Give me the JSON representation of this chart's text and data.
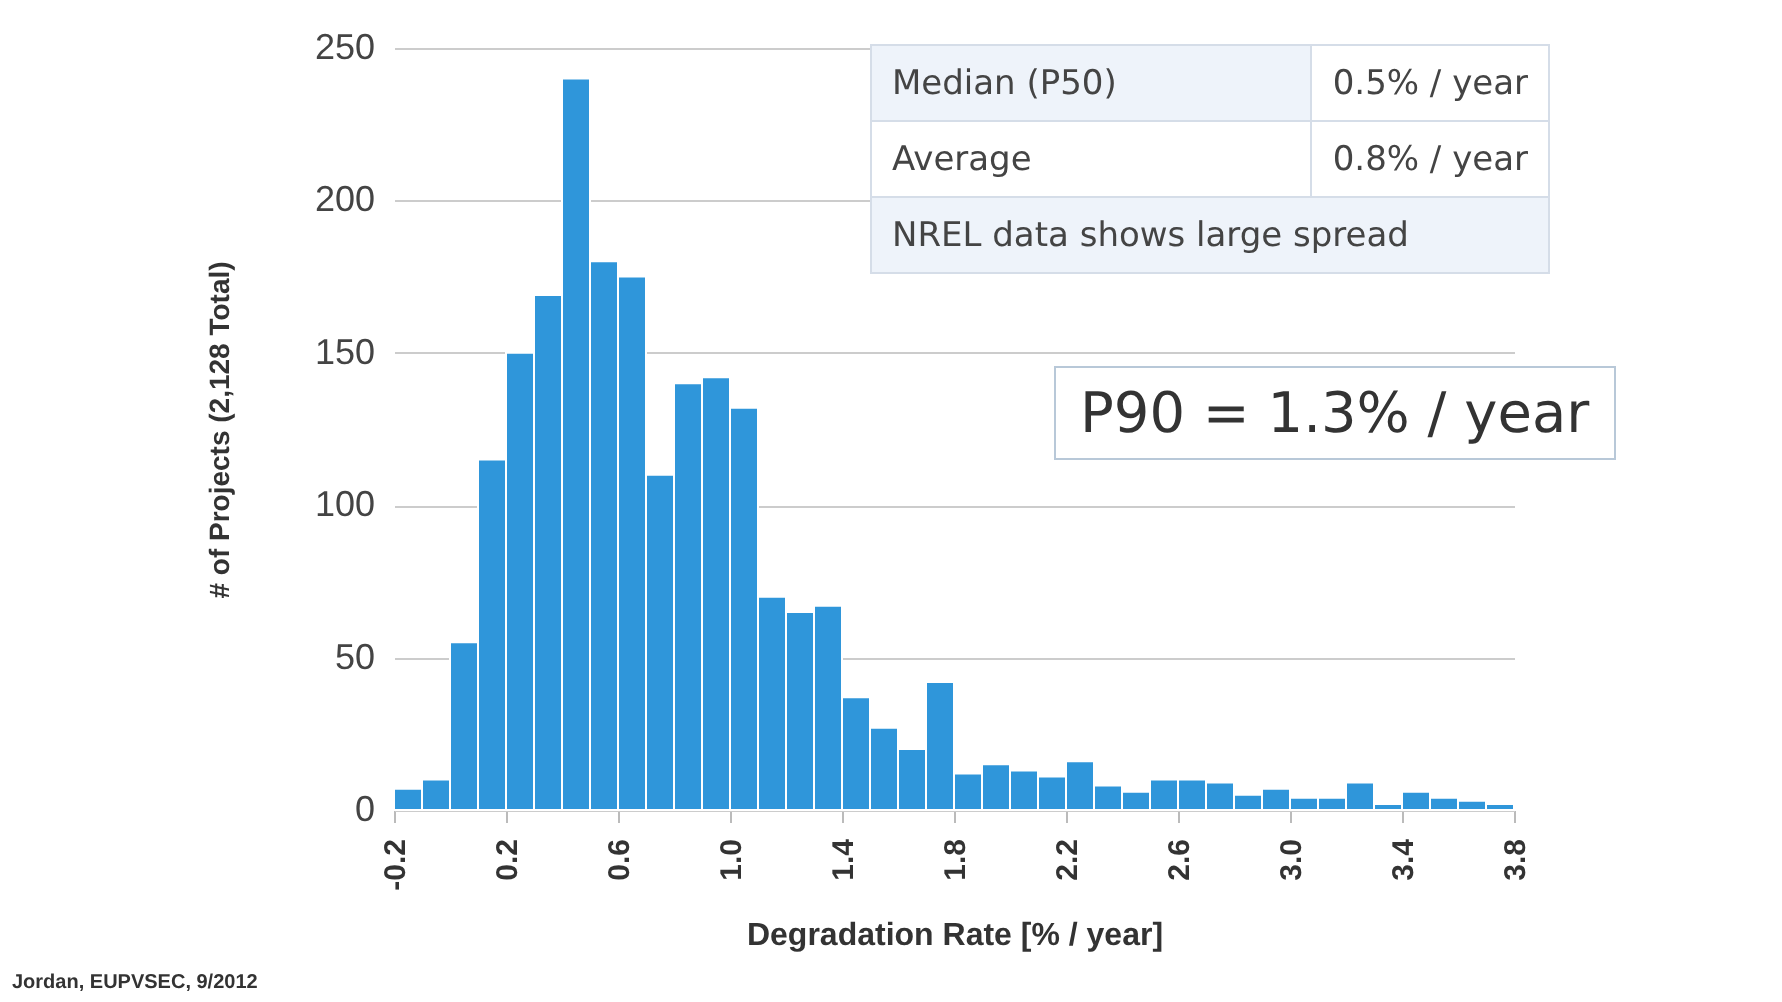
{
  "chart_data": {
    "type": "histogram",
    "xlabel": "Degradation Rate [% / year]",
    "ylabel": "# of Projects (2,128 Total)",
    "bins": [
      -0.2,
      -0.1,
      0,
      0.1,
      0.2,
      0.3,
      0.4,
      0.5,
      0.6,
      0.7,
      0.8,
      0.9,
      1.0,
      1.1,
      1.2,
      1.3,
      1.4,
      1.5,
      1.6,
      1.7,
      1.8,
      1.9,
      2.0,
      2.1,
      2.2,
      2.3,
      2.4,
      2.5,
      2.6,
      2.7,
      2.8,
      2.9,
      3.0,
      3.1,
      3.2,
      3.3,
      3.4,
      3.5,
      3.6,
      3.7,
      3.8
    ],
    "values": [
      7,
      10,
      55,
      115,
      150,
      169,
      240,
      180,
      175,
      110,
      140,
      142,
      132,
      70,
      65,
      67,
      37,
      27,
      20,
      42,
      12,
      15,
      13,
      11,
      16,
      8,
      6,
      10,
      10,
      9,
      5,
      7,
      4,
      4,
      9,
      2,
      6,
      4,
      3,
      2
    ],
    "color": "#2f96da",
    "xlim": [
      -0.2,
      3.8
    ],
    "xticks": [
      -0.2,
      0.2,
      0.6,
      {
        "value": 1,
        "label": "1.0"
      },
      1.4,
      1.8,
      2.2,
      2.6,
      {
        "value": 3,
        "label": "3.0"
      },
      3.4,
      3.8
    ],
    "ylim": [
      0,
      250
    ],
    "yticks": [
      0,
      50,
      100,
      150,
      200,
      250
    ],
    "grid": "y",
    "annotations": [
      "Median (P50)",
      "0.5% / year",
      "Average",
      "0.8% / year",
      "NREL data shows large spread",
      "P90 = 1.3% / year",
      "Jordan, EUPVSEC, 9/2012"
    ]
  }
}
